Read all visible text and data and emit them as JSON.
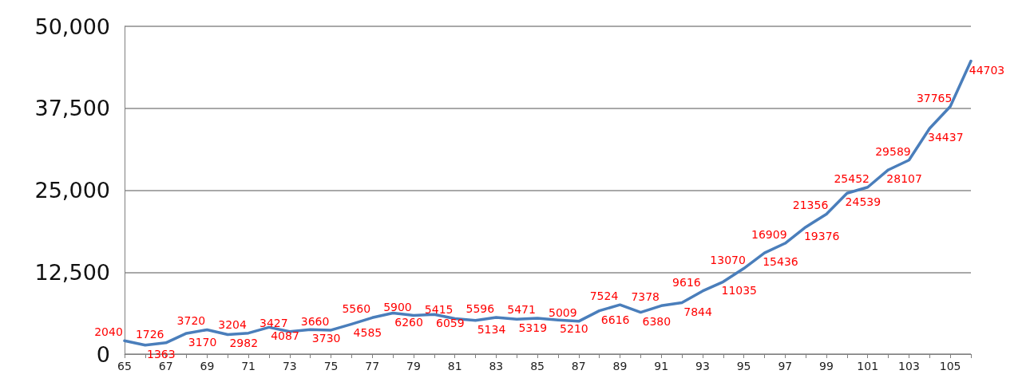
{
  "chart_data": {
    "type": "line",
    "categories": [
      "65",
      null,
      "67",
      null,
      "69",
      null,
      "71",
      null,
      "73",
      null,
      "75",
      null,
      "77",
      null,
      "79",
      null,
      "81",
      null,
      "83",
      null,
      "85",
      null,
      "87",
      null,
      "89",
      null,
      "91",
      null,
      "93",
      null,
      "95",
      null,
      "97",
      null,
      "99",
      null,
      "101",
      null,
      "103",
      null,
      "105",
      null
    ],
    "series": [
      {
        "color": "#4a7ebb",
        "values": [
          2040,
          1363,
          1726,
          3170,
          3720,
          2982,
          3204,
          4087,
          3427,
          3730,
          3660,
          4585,
          5560,
          6260,
          5900,
          6059,
          5415,
          5134,
          5596,
          5319,
          5471,
          5210,
          5009,
          6616,
          7524,
          6380,
          7378,
          7844,
          9616,
          11035,
          13070,
          15436,
          16909,
          19376,
          21356,
          24539,
          25452,
          28107,
          29589,
          34437,
          37765,
          44703
        ]
      }
    ],
    "ylim": [
      0,
      50000
    ],
    "yticks": [
      {
        "value": 0,
        "label": "0"
      },
      {
        "value": 12500,
        "label": "12,500"
      },
      {
        "value": 25000,
        "label": "25,000"
      },
      {
        "value": 37500,
        "label": "37,500"
      },
      {
        "value": 50000,
        "label": "50,000"
      }
    ],
    "grid": "y",
    "data_labels": true,
    "marker": "none",
    "line_style": "solid"
  }
}
